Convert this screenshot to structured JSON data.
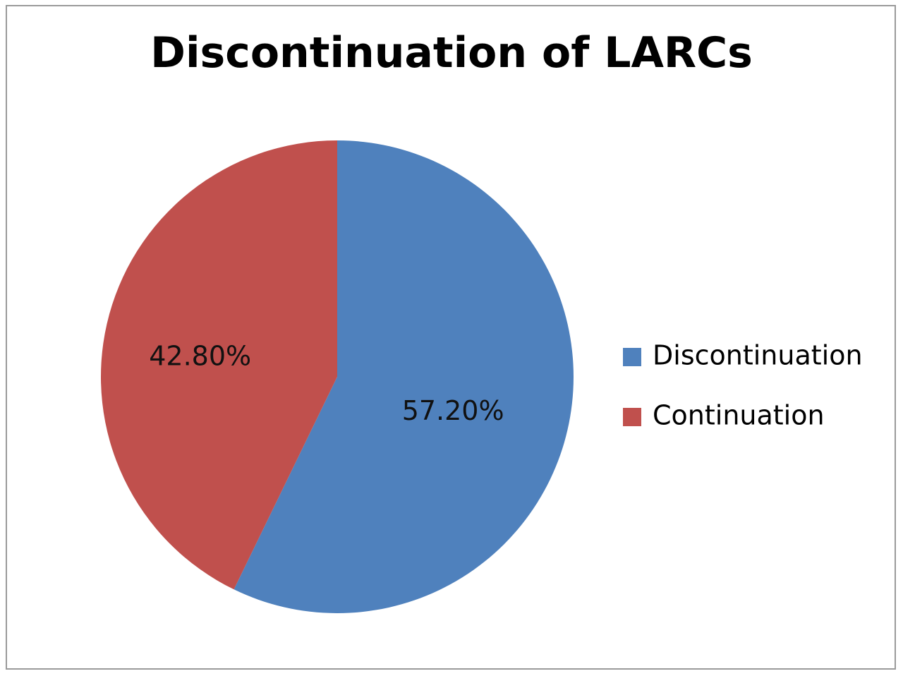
{
  "chart_data": {
    "type": "pie",
    "title": "Discontinuation of LARCs",
    "slices": [
      {
        "name": "Discontinuation",
        "value": 57.2,
        "label": "57.20%",
        "color": "#4f81bd"
      },
      {
        "name": "Continuation",
        "value": 42.8,
        "label": "42.80%",
        "color": "#c0504d"
      }
    ],
    "start_angle": "12 o'clock",
    "direction": "clockwise",
    "legend": {
      "position": "right",
      "entries": [
        "Discontinuation",
        "Continuation"
      ]
    }
  }
}
